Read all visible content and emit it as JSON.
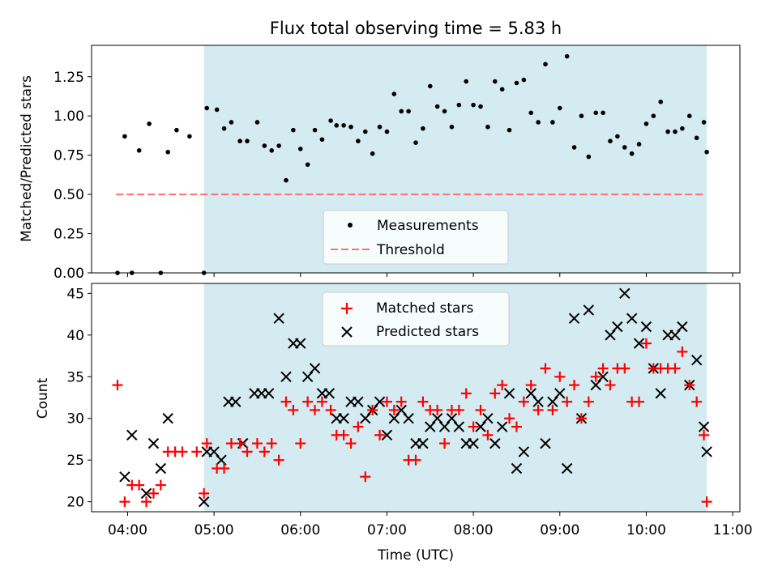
{
  "chart_data": [
    {
      "type": "scatter",
      "title": "Flux total observing time = 5.83 h",
      "xlabel": "",
      "ylabel": "Matched/Predicted stars",
      "ylim": [
        0,
        1.45
      ],
      "xlim": [
        "03:35",
        "11:05"
      ],
      "yticks": [
        "0.00",
        "0.25",
        "0.50",
        "0.75",
        "1.00",
        "1.25"
      ],
      "shaded_span": [
        "04:53",
        "10:42"
      ],
      "grid": false,
      "legend_position": "lower-center",
      "series": [
        {
          "name": "Measurements",
          "marker": "dot",
          "color": "#000000",
          "x": [
            "03:53",
            "03:58",
            "04:03",
            "04:08",
            "04:15",
            "04:23",
            "04:28",
            "04:34",
            "04:43",
            "04:53",
            "04:55",
            "05:02",
            "05:07",
            "05:12",
            "05:18",
            "05:23",
            "05:30",
            "05:35",
            "05:40",
            "05:45",
            "05:50",
            "05:55",
            "06:00",
            "06:05",
            "06:10",
            "06:15",
            "06:21",
            "06:25",
            "06:30",
            "06:35",
            "06:40",
            "06:45",
            "06:50",
            "06:55",
            "07:00",
            "07:05",
            "07:10",
            "07:15",
            "07:20",
            "07:25",
            "07:30",
            "07:35",
            "07:40",
            "07:45",
            "07:50",
            "07:55",
            "08:00",
            "08:05",
            "08:10",
            "08:15",
            "08:20",
            "08:25",
            "08:30",
            "08:35",
            "08:40",
            "08:45",
            "08:50",
            "08:55",
            "09:00",
            "09:05",
            "09:10",
            "09:15",
            "09:20",
            "09:25",
            "09:30",
            "09:35",
            "09:40",
            "09:45",
            "09:50",
            "09:55",
            "10:00",
            "10:05",
            "10:10",
            "10:15",
            "10:20",
            "10:25",
            "10:30",
            "10:35",
            "10:40",
            "10:42"
          ],
          "y": [
            0.0,
            0.87,
            0.0,
            0.78,
            0.95,
            0.0,
            0.77,
            0.91,
            0.87,
            0.0,
            1.05,
            1.04,
            0.92,
            0.96,
            0.84,
            0.84,
            0.96,
            0.81,
            0.78,
            0.81,
            0.59,
            0.91,
            0.79,
            0.69,
            0.91,
            0.85,
            0.97,
            0.94,
            0.94,
            0.93,
            0.84,
            0.9,
            0.76,
            0.93,
            0.9,
            1.14,
            1.03,
            1.03,
            0.83,
            0.92,
            1.19,
            1.06,
            1.03,
            0.93,
            1.07,
            1.22,
            1.07,
            1.06,
            0.93,
            1.22,
            1.17,
            0.91,
            1.21,
            1.23,
            1.02,
            0.96,
            1.33,
            0.96,
            1.05,
            1.38,
            0.8,
            1.0,
            0.74,
            1.02,
            1.02,
            0.84,
            0.87,
            0.8,
            0.76,
            0.82,
            0.95,
            1.0,
            1.09,
            0.9,
            0.9,
            0.92,
            1.0,
            0.86,
            0.96,
            0.77
          ]
        },
        {
          "name": "Threshold",
          "marker": "dashed-line",
          "color": "#ff7070",
          "x": [
            "03:52",
            "10:41"
          ],
          "y": [
            0.5,
            0.5
          ]
        }
      ]
    },
    {
      "type": "scatter",
      "title": "",
      "xlabel": "Time (UTC)",
      "ylabel": "Count",
      "ylim": [
        18.8,
        46.2
      ],
      "xlim": [
        "03:35",
        "11:05"
      ],
      "xticks": [
        "04:00",
        "05:00",
        "06:00",
        "07:00",
        "08:00",
        "09:00",
        "10:00",
        "11:00"
      ],
      "yticks": [
        "20",
        "25",
        "30",
        "35",
        "40",
        "45"
      ],
      "shaded_span": [
        "04:53",
        "10:42"
      ],
      "grid": false,
      "legend_position": "upper-center",
      "series": [
        {
          "name": "Matched stars",
          "marker": "plus",
          "color": "#ff0000",
          "x": [
            "03:53",
            "03:58",
            "04:03",
            "04:08",
            "04:13",
            "04:18",
            "04:23",
            "04:28",
            "04:33",
            "04:38",
            "04:48",
            "04:53",
            "04:55",
            "05:02",
            "05:07",
            "05:12",
            "05:18",
            "05:23",
            "05:30",
            "05:35",
            "05:40",
            "05:45",
            "05:50",
            "05:55",
            "06:00",
            "06:05",
            "06:10",
            "06:15",
            "06:21",
            "06:25",
            "06:30",
            "06:35",
            "06:40",
            "06:45",
            "06:50",
            "06:55",
            "07:00",
            "07:05",
            "07:10",
            "07:15",
            "07:20",
            "07:25",
            "07:30",
            "07:35",
            "07:40",
            "07:45",
            "07:50",
            "07:55",
            "08:00",
            "08:05",
            "08:10",
            "08:15",
            "08:20",
            "08:25",
            "08:30",
            "08:35",
            "08:40",
            "08:45",
            "08:50",
            "08:55",
            "09:00",
            "09:05",
            "09:10",
            "09:15",
            "09:20",
            "09:25",
            "09:30",
            "09:35",
            "09:40",
            "09:45",
            "09:50",
            "09:55",
            "10:00",
            "10:05",
            "10:10",
            "10:15",
            "10:20",
            "10:25",
            "10:30",
            "10:35",
            "10:40",
            "10:42"
          ],
          "y": [
            34,
            20,
            22,
            22,
            20,
            21,
            22,
            26,
            26,
            26,
            26,
            21,
            27,
            24,
            24,
            27,
            27,
            26,
            27,
            26,
            27,
            25,
            32,
            31,
            27,
            32,
            31,
            32,
            31,
            28,
            28,
            27,
            29,
            23,
            31,
            28,
            32,
            31,
            32,
            25,
            25,
            32,
            31,
            31,
            27,
            31,
            31,
            33,
            29,
            31,
            28,
            33,
            34,
            30,
            29,
            32,
            34,
            31,
            36,
            31,
            35,
            32,
            34,
            30,
            32,
            35,
            36,
            34,
            36,
            36,
            32,
            32,
            39,
            36,
            36,
            36,
            36,
            38,
            34,
            32,
            28,
            20
          ]
        },
        {
          "name": "Predicted stars",
          "marker": "x",
          "color": "#000000",
          "x": [
            "03:58",
            "04:03",
            "04:13",
            "04:18",
            "04:23",
            "04:28",
            "04:53",
            "04:55",
            "05:00",
            "05:05",
            "05:10",
            "05:15",
            "05:20",
            "05:28",
            "05:33",
            "05:38",
            "05:45",
            "05:50",
            "05:55",
            "06:00",
            "06:05",
            "06:10",
            "06:15",
            "06:20",
            "06:25",
            "06:30",
            "06:35",
            "06:40",
            "06:45",
            "06:50",
            "06:55",
            "07:00",
            "07:05",
            "07:10",
            "07:15",
            "07:20",
            "07:25",
            "07:30",
            "07:35",
            "07:40",
            "07:45",
            "07:50",
            "07:55",
            "08:00",
            "08:05",
            "08:10",
            "08:15",
            "08:20",
            "08:25",
            "08:30",
            "08:35",
            "08:40",
            "08:45",
            "08:50",
            "08:55",
            "09:00",
            "09:05",
            "09:10",
            "09:15",
            "09:20",
            "09:25",
            "09:30",
            "09:35",
            "09:40",
            "09:45",
            "09:50",
            "09:55",
            "10:00",
            "10:05",
            "10:10",
            "10:15",
            "10:20",
            "10:25",
            "10:30",
            "10:35",
            "10:40",
            "10:42"
          ],
          "y": [
            23,
            28,
            21,
            27,
            24,
            30,
            20,
            26,
            26,
            25,
            32,
            32,
            27,
            33,
            33,
            33,
            42,
            35,
            39,
            39,
            35,
            36,
            33,
            33,
            30,
            30,
            32,
            32,
            30,
            31,
            32,
            28,
            30,
            31,
            30,
            27,
            27,
            29,
            30,
            29,
            30,
            29,
            27,
            27,
            29,
            30,
            27,
            29,
            33,
            24,
            26,
            33,
            32,
            27,
            32,
            33,
            24,
            42,
            30,
            43,
            34,
            35,
            40,
            41,
            45,
            42,
            39,
            41,
            36,
            33,
            40,
            40,
            41,
            34,
            37,
            29,
            26
          ]
        }
      ]
    }
  ]
}
